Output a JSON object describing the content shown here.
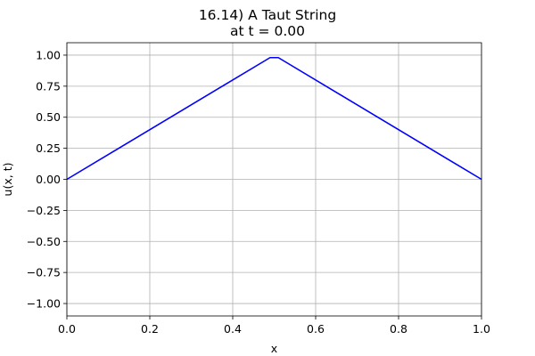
{
  "chart_data": {
    "type": "line",
    "title_line1": "16.14) A Taut String",
    "title_line2": "at t = 0.00",
    "xlabel": "x",
    "ylabel": "u(x, t)",
    "xlim": [
      0.0,
      1.0
    ],
    "ylim": [
      -1.1,
      1.1
    ],
    "xticks": [
      0.0,
      0.2,
      0.4,
      0.6,
      0.8,
      1.0
    ],
    "yticks": [
      -1.0,
      -0.75,
      -0.5,
      -0.25,
      0.0,
      0.25,
      0.5,
      0.75,
      1.0
    ],
    "xtick_labels": [
      "0.0",
      "0.2",
      "0.4",
      "0.6",
      "0.8",
      "1.0"
    ],
    "ytick_labels": [
      "−1.00",
      "−0.75",
      "−0.50",
      "−0.25",
      "0.00",
      "0.25",
      "0.50",
      "0.75",
      "1.00"
    ],
    "grid": true,
    "series": [
      {
        "color": "#0000ff",
        "x": [
          0.0,
          0.49,
          0.51,
          1.0
        ],
        "y": [
          0.0,
          0.98,
          0.98,
          0.0
        ]
      }
    ]
  }
}
